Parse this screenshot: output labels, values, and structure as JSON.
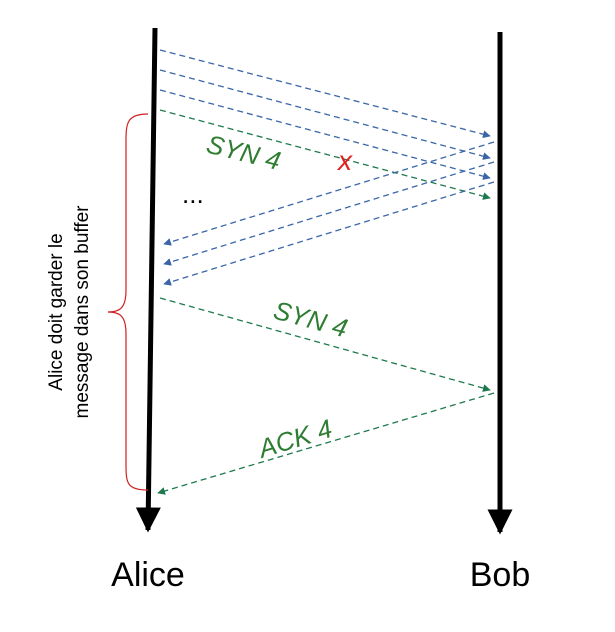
{
  "actors": {
    "left": "Alice",
    "right": "Bob"
  },
  "buffer_note": {
    "line1": "Alice doit garder le",
    "line2": "message  dans son buffer"
  },
  "messages": {
    "lost_label": "SYN 4",
    "lost_marker": "x",
    "ellipsis": "...",
    "resend_label": "SYN 4",
    "ack_label": "ACK 4"
  },
  "colors": {
    "lifeline": "#000000",
    "blue_arrow": "#3a66a8",
    "green_arrow": "#1e7a4e",
    "label_green": "#2e7d32",
    "lost_red": "#e02020",
    "brace_red": "#d02020"
  }
}
